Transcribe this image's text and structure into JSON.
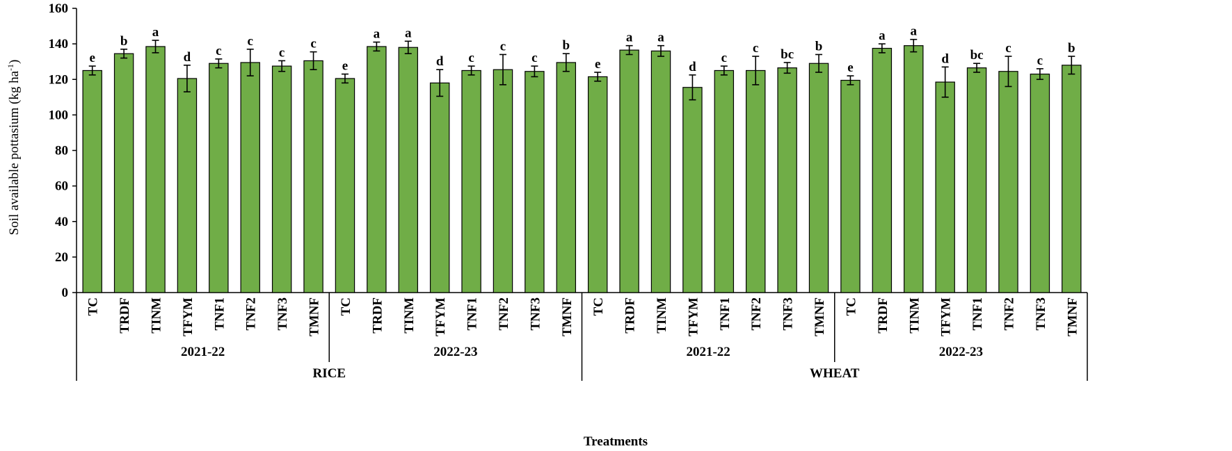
{
  "chart_data": {
    "type": "bar",
    "ylabel": "Soil available pottasium (kg ha-1)",
    "ylabel_main": "Soil available pottasium (kg ha",
    "ylabel_sup": "-1",
    "ylabel_close": ")",
    "xlabel": "Treatments",
    "ylim": [
      0,
      160
    ],
    "yticks": [
      0,
      20,
      40,
      60,
      80,
      100,
      120,
      140,
      160
    ],
    "bar_color": "#70ad47",
    "bar_edge_color": "#000000",
    "crops": [
      "RICE",
      "WHEAT"
    ],
    "years": [
      "2021-22",
      "2022-23",
      "2021-22",
      "2022-23"
    ],
    "categories": [
      "TC",
      "TRDF",
      "TINM",
      "TFYM",
      "TNF1",
      "TNF2",
      "TNF3",
      "TMNF",
      "TC",
      "TRDF",
      "TINM",
      "TFYM",
      "TNF1",
      "TNF2",
      "TNF3",
      "TMNF",
      "TC",
      "TRDF",
      "TINM",
      "TFYM",
      "TNF1",
      "TNF2",
      "TNF3",
      "TMNF",
      "TC",
      "TRDF",
      "TINM",
      "TFYM",
      "TNF1",
      "TNF2",
      "TNF3",
      "TMNF"
    ],
    "values": [
      125,
      134.5,
      138.5,
      120.5,
      129,
      129.5,
      127.5,
      130.5,
      120.5,
      138.5,
      138,
      118,
      125,
      125.5,
      124.5,
      129.5,
      121.5,
      136.5,
      136,
      115.5,
      125,
      125,
      126.5,
      129,
      119.5,
      137.5,
      139,
      118.5,
      126.5,
      124.5,
      123,
      128
    ],
    "errors": [
      2.5,
      2.5,
      3.5,
      7.5,
      2.5,
      7.5,
      3,
      5,
      2.5,
      2.5,
      3.5,
      7.5,
      2.5,
      8.5,
      3,
      5,
      2.5,
      2.5,
      3,
      7,
      2.5,
      8,
      3,
      5,
      2.5,
      2.5,
      3.5,
      8.5,
      2.5,
      8.5,
      3,
      5
    ],
    "letters": [
      "e",
      "b",
      "a",
      "d",
      "c",
      "c",
      "c",
      "c",
      "e",
      "a",
      "a",
      "d",
      "c",
      "c",
      "c",
      "b",
      "e",
      "a",
      "a",
      "d",
      "c",
      "c",
      "bc",
      "b",
      "e",
      "a",
      "a",
      "d",
      "bc",
      "c",
      "c",
      "b"
    ]
  }
}
